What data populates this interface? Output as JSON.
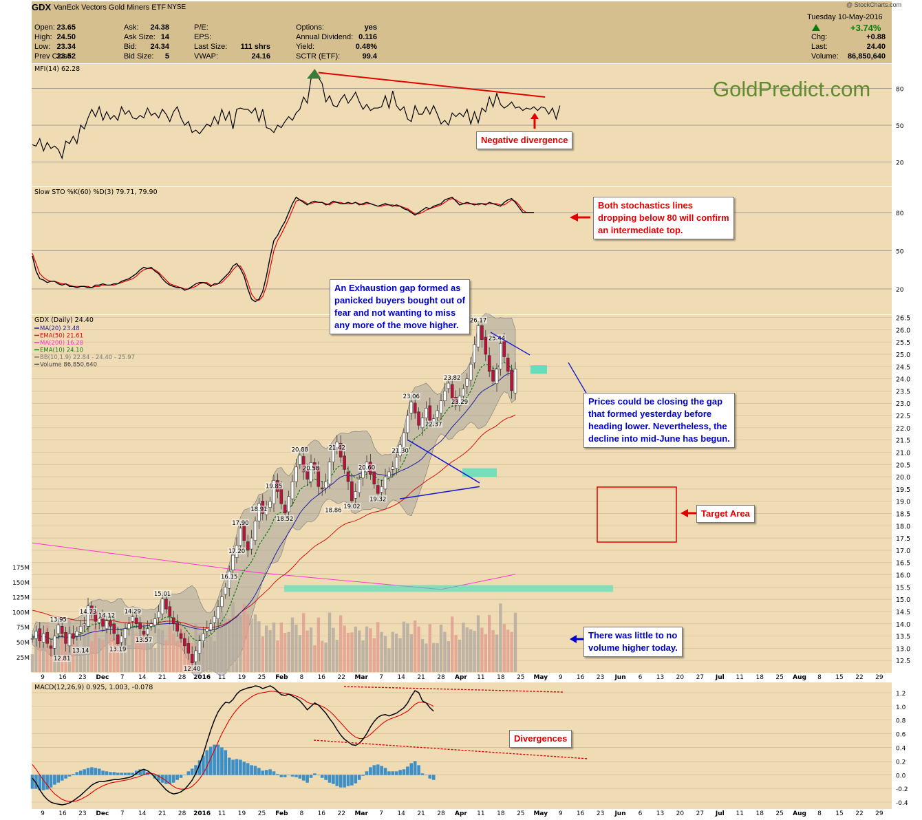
{
  "header": {
    "symbol": "GDX",
    "name": "VanEck Vectors Gold Miners ETF",
    "exchange": "NYSE",
    "date": "Tuesday  10-May-2016",
    "pct_change": "+3.74%",
    "source": "@ StockCharts.com",
    "stats": [
      {
        "label": "Open:",
        "value": "23.65"
      },
      {
        "label": "High:",
        "value": "24.50"
      },
      {
        "label": "Low:",
        "value": "23.34"
      },
      {
        "label": "Prev Close:",
        "value": "23.52"
      },
      {
        "label": "Ask:",
        "value": "24.38"
      },
      {
        "label": "Ask Size:",
        "value": "14"
      },
      {
        "label": "Bid:",
        "value": "24.34"
      },
      {
        "label": "Bid Size:",
        "value": "5"
      },
      {
        "label": "P/E:",
        "value": ""
      },
      {
        "label": "EPS:",
        "value": ""
      },
      {
        "label": "Last Size:",
        "value": "111 shrs"
      },
      {
        "label": "VWAP:",
        "value": "24.16"
      },
      {
        "label": "Options:",
        "value": "yes"
      },
      {
        "label": "Annual Dividend:",
        "value": "0.116"
      },
      {
        "label": "Yield:",
        "value": "0.48%"
      },
      {
        "label": "SCTR (ETF):",
        "value": "99.4"
      },
      {
        "label": "Chg:",
        "value": "+0.88"
      },
      {
        "label": "Last:",
        "value": "24.40"
      },
      {
        "label": "Volume:",
        "value": "86,850,640"
      }
    ]
  },
  "watermark": "GoldPredict.com",
  "colors": {
    "panel_bg": "#f0dcb4",
    "header_bg": "#d6bf8f",
    "annotation_red": "#e00000",
    "annotation_blue": "#0000cc",
    "gap_cyan": "#40e0c0",
    "ma20": "#1f1fa0",
    "ema50": "#d01010",
    "ma200": "#ff33cc",
    "ema10": "#137a13"
  },
  "annotations": {
    "negative_divergence": "Negative divergence",
    "stoch": [
      "Both stochastics lines",
      "dropping below 80 will confirm",
      "an intermediate top."
    ],
    "exhaustion": [
      "An Exhaustion gap formed as",
      "panicked buyers bought out of",
      "fear and not wanting to miss",
      "any more of the move higher."
    ],
    "gap": [
      "Prices could be closing the gap",
      "that formed yesterday before",
      "heading lower. Nevertheless, the",
      "decline into mid-June has begun."
    ],
    "target": "Target Area",
    "volume": [
      "There was little to no",
      "volume higher today."
    ],
    "divergences": "Divergences"
  },
  "chart_data": [
    {
      "type": "line",
      "title": "MFI(14) 62.28",
      "ylim": [
        0,
        100
      ],
      "yticks": [
        20,
        50,
        80
      ],
      "series": [
        {
          "name": "MFI(14)",
          "values": [
            34,
            33,
            39,
            29,
            36,
            31,
            33,
            30,
            23,
            37,
            35,
            41,
            35,
            50,
            47,
            56,
            63,
            57,
            65,
            54,
            61,
            55,
            58,
            54,
            65,
            59,
            62,
            56,
            55,
            58,
            56,
            64,
            58,
            60,
            56,
            63,
            59,
            53,
            61,
            65,
            56,
            50,
            53,
            44,
            46,
            43,
            47,
            51,
            49,
            57,
            51,
            63,
            54,
            61,
            47,
            63,
            64,
            63,
            63,
            60,
            64,
            53,
            63,
            48,
            47,
            44,
            50,
            48,
            53,
            57,
            54,
            60,
            63,
            73,
            68,
            88,
            90,
            89,
            84,
            69,
            74,
            66,
            65,
            71,
            75,
            68,
            72,
            77,
            69,
            63,
            67,
            62,
            64,
            64,
            65,
            74,
            64,
            78,
            66,
            62,
            65,
            55,
            53,
            66,
            59,
            59,
            65,
            59,
            66,
            59,
            51,
            54,
            50,
            60,
            57,
            60,
            57,
            63,
            51,
            61,
            52,
            64,
            61,
            73,
            65,
            76,
            67,
            64,
            66,
            69,
            64,
            65,
            62,
            64,
            63,
            65,
            62,
            65,
            64,
            59,
            64,
            55,
            66
          ]
        }
      ]
    },
    {
      "type": "line",
      "title": "Slow STO %K(60) %D(3) 79.71, 79.90",
      "ylim": [
        0,
        100
      ],
      "yticks": [
        20,
        50,
        80
      ],
      "series": [
        {
          "name": "%K(60)",
          "values": [
            46,
            34,
            28,
            27,
            25,
            26,
            26,
            24,
            23,
            24,
            22,
            22,
            21,
            22,
            22,
            21,
            21,
            23,
            23,
            24,
            23,
            23,
            24,
            24,
            26,
            27,
            28,
            30,
            32,
            35,
            37,
            36,
            37,
            34,
            32,
            28,
            25,
            23,
            22,
            21,
            21,
            19,
            20,
            22,
            24,
            25,
            25,
            24,
            22,
            24,
            24,
            27,
            30,
            33,
            38,
            40,
            36,
            30,
            20,
            12,
            10,
            12,
            18,
            30,
            45,
            58,
            62,
            68,
            73,
            80,
            87,
            92,
            90,
            88,
            86,
            88,
            89,
            88,
            88,
            86,
            87,
            89,
            88,
            87,
            87,
            88,
            87,
            88,
            86,
            87,
            88,
            87,
            86,
            85,
            86,
            87,
            86,
            85,
            86,
            85,
            83,
            82,
            80,
            78,
            80,
            82,
            84,
            83,
            85,
            86,
            87,
            90,
            91,
            92,
            89,
            86,
            87,
            88,
            87,
            86,
            87,
            87,
            86,
            88,
            87,
            86,
            85,
            88,
            90,
            91,
            88,
            84,
            80,
            80,
            80,
            80
          ]
        },
        {
          "name": "%D(3)",
          "values": [
            48,
            40,
            32,
            29,
            27,
            26,
            26,
            25,
            24,
            24,
            23,
            22,
            22,
            22,
            22,
            22,
            21,
            22,
            22,
            23,
            23,
            23,
            23,
            24,
            25,
            26,
            27,
            28,
            30,
            33,
            35,
            36,
            36,
            35,
            33,
            30,
            27,
            24,
            23,
            22,
            21,
            20,
            20,
            21,
            22,
            24,
            25,
            25,
            23,
            23,
            24,
            25,
            28,
            31,
            35,
            38,
            38,
            33,
            25,
            16,
            12,
            11,
            14,
            22,
            36,
            50,
            58,
            63,
            69,
            75,
            82,
            89,
            90,
            89,
            87,
            87,
            88,
            88,
            88,
            87,
            86,
            88,
            88,
            88,
            87,
            87,
            87,
            88,
            87,
            86,
            87,
            87,
            86,
            85,
            85,
            86,
            86,
            86,
            85,
            85,
            84,
            83,
            81,
            79,
            79,
            80,
            82,
            83,
            84,
            85,
            86,
            88,
            90,
            91,
            90,
            88,
            87,
            87,
            87,
            87,
            86,
            87,
            87,
            87,
            87,
            87,
            86,
            86,
            88,
            90,
            89,
            86,
            82,
            80,
            80,
            80
          ]
        }
      ]
    },
    {
      "type": "candlestick",
      "title": "GDX (Daily) 24.40",
      "ylim": [
        12,
        26.6
      ],
      "yticks": [
        12.5,
        13.0,
        13.5,
        14.0,
        14.5,
        15.0,
        15.5,
        16.0,
        16.5,
        17.0,
        17.5,
        18.0,
        18.5,
        19.0,
        19.5,
        20.0,
        20.5,
        21.0,
        21.5,
        22.0,
        22.5,
        23.0,
        23.5,
        24.0,
        24.5,
        25.0,
        25.5,
        26.0,
        26.5
      ],
      "volume_ticks": [
        "175M",
        "150M",
        "125M",
        "100M",
        "75M",
        "50M",
        "25M"
      ],
      "legend": [
        "MA(20) 23.48",
        "EMA(50) 21.61",
        "MA(200) 16.28",
        "EMA(10) 24.10",
        "BB(10,1.9) 22.84 - 24.40 - 25.97",
        "Volume 86,850,640"
      ],
      "closes": [
        13.4,
        13.7,
        13.3,
        13.6,
        13.2,
        13.0,
        13.5,
        13.95,
        13.6,
        13.2,
        13.6,
        13.4,
        13.7,
        13.9,
        14.0,
        14.73,
        14.4,
        14.1,
        14.2,
        13.9,
        14.12,
        13.9,
        13.6,
        13.19,
        13.5,
        13.8,
        14.0,
        14.29,
        14.0,
        13.8,
        13.57,
        13.8,
        14.0,
        14.2,
        14.5,
        15.01,
        14.6,
        14.3,
        14.0,
        13.7,
        13.4,
        13.1,
        12.8,
        12.4,
        12.9,
        13.3,
        13.6,
        13.8,
        14.0,
        14.3,
        14.7,
        15.1,
        15.5,
        16.15,
        16.8,
        17.2,
        17.9,
        17.4,
        17.0,
        17.5,
        18.2,
        18.91,
        18.5,
        18.7,
        19.0,
        19.85,
        19.4,
        18.9,
        18.52,
        19.2,
        19.8,
        20.4,
        20.88,
        20.2,
        19.9,
        20.58,
        20.3,
        19.6,
        19.5,
        19.8,
        20.6,
        21.1,
        21.42,
        20.8,
        20.3,
        19.8,
        19.02,
        19.4,
        19.9,
        20.3,
        20.6,
        20.1,
        19.7,
        19.32,
        19.6,
        20.0,
        20.2,
        20.4,
        20.8,
        21.3,
        21.8,
        22.5,
        23.06,
        22.6,
        22.1,
        22.4,
        22.8,
        22.3,
        22.37,
        22.7,
        23.1,
        23.5,
        23.82,
        23.2,
        23.0,
        23.29,
        23.6,
        24.0,
        24.6,
        25.4,
        26.17,
        25.6,
        25.0,
        24.3,
        23.9,
        24.4,
        25.44,
        24.9,
        24.3,
        23.52,
        24.4
      ],
      "labels": [
        "12.81",
        "13.14",
        "13.95",
        "14.73",
        "14.12",
        "13.19",
        "14.29",
        "13.57",
        "15.01",
        "12.40",
        "16.15",
        "17.20",
        "17.90",
        "18.91",
        "18.52",
        "19.85",
        "20.88",
        "20.58",
        "18.86",
        "21.42",
        "19.02",
        "20.60",
        "19.32",
        "21.30",
        "23.06",
        "22.37",
        "23.82",
        "23.29",
        "26.17",
        "25.44"
      ]
    },
    {
      "type": "line",
      "title": "MACD(12,26,9) 0.925, 1.003, -0.078",
      "ylim": [
        -0.5,
        1.35
      ],
      "yticks": [
        -0.4,
        -0.2,
        0.0,
        0.2,
        0.4,
        0.6,
        0.8,
        1.0,
        1.2
      ],
      "series": [
        {
          "name": "MACD(12,26,9)",
          "values": [
            -0.05,
            -0.12,
            -0.22,
            -0.3,
            -0.36,
            -0.4,
            -0.42,
            -0.43,
            -0.44,
            -0.43,
            -0.41,
            -0.38,
            -0.34,
            -0.3,
            -0.25,
            -0.2,
            -0.15,
            -0.12,
            -0.1,
            -0.1,
            -0.09,
            -0.08,
            -0.07,
            -0.07,
            -0.06,
            -0.05,
            -0.04,
            -0.02,
            0.02,
            0.06,
            0.08,
            0.06,
            0.02,
            -0.04,
            -0.1,
            -0.16,
            -0.22,
            -0.26,
            -0.28,
            -0.27,
            -0.25,
            -0.21,
            -0.15,
            -0.08,
            0.02,
            0.15,
            0.3,
            0.48,
            0.65,
            0.8,
            0.92,
            1.0,
            1.06,
            1.05,
            1.1,
            1.18,
            1.23,
            1.25,
            1.27,
            1.28,
            1.3,
            1.29,
            1.26,
            1.28,
            1.3,
            1.27,
            1.22,
            1.17,
            1.16,
            1.18,
            1.15,
            1.12,
            1.08,
            1.02,
            0.95,
            1.0,
            1.05,
            1.02,
            0.96,
            0.9,
            0.82,
            0.75,
            0.66,
            0.58,
            0.52,
            0.48,
            0.44,
            0.43,
            0.46,
            0.52,
            0.6,
            0.7,
            0.78,
            0.84,
            0.87,
            0.88,
            0.86,
            0.88,
            0.9,
            0.94,
            0.98,
            1.05,
            1.15,
            1.23,
            1.2,
            1.08,
            1.05,
            0.98,
            0.93
          ]
        },
        {
          "name": "Signal",
          "values": [
            0.15,
            0.08,
            0.0,
            -0.08,
            -0.15,
            -0.22,
            -0.28,
            -0.32,
            -0.36,
            -0.38,
            -0.39,
            -0.39,
            -0.38,
            -0.36,
            -0.33,
            -0.3,
            -0.26,
            -0.22,
            -0.19,
            -0.16,
            -0.14,
            -0.12,
            -0.11,
            -0.1,
            -0.09,
            -0.08,
            -0.07,
            -0.05,
            -0.04,
            -0.02,
            0.0,
            0.02,
            0.02,
            0.01,
            -0.02,
            -0.05,
            -0.09,
            -0.13,
            -0.17,
            -0.2,
            -0.21,
            -0.21,
            -0.2,
            -0.17,
            -0.12,
            -0.06,
            0.02,
            0.12,
            0.24,
            0.36,
            0.48,
            0.6,
            0.7,
            0.8,
            0.88,
            0.95,
            1.01,
            1.06,
            1.1,
            1.14,
            1.17,
            1.19,
            1.2,
            1.21,
            1.22,
            1.22,
            1.21,
            1.2,
            1.19,
            1.18,
            1.17,
            1.15,
            1.13,
            1.1,
            1.06,
            1.04,
            1.03,
            1.02,
            1.0,
            0.97,
            0.93,
            0.88,
            0.82,
            0.76,
            0.7,
            0.64,
            0.59,
            0.55,
            0.53,
            0.53,
            0.55,
            0.59,
            0.64,
            0.69,
            0.74,
            0.78,
            0.81,
            0.83,
            0.85,
            0.87,
            0.9,
            0.93,
            0.98,
            1.03,
            1.06,
            1.06,
            1.05,
            1.03,
            1.0
          ]
        }
      ]
    }
  ],
  "x_axis_labels": [
    "9",
    "16",
    "23",
    "Dec",
    "7",
    "14",
    "21",
    "28",
    "2016",
    "11",
    "19",
    "25",
    "Feb",
    "8",
    "16",
    "22",
    "Mar",
    "7",
    "14",
    "21",
    "28",
    "Apr",
    "11",
    "18",
    "25",
    "May",
    "9",
    "16",
    "23",
    "Jun",
    "6",
    "13",
    "20",
    "27",
    "Jul",
    "11",
    "18",
    "25",
    "Aug",
    "8",
    "15",
    "22",
    "29"
  ]
}
